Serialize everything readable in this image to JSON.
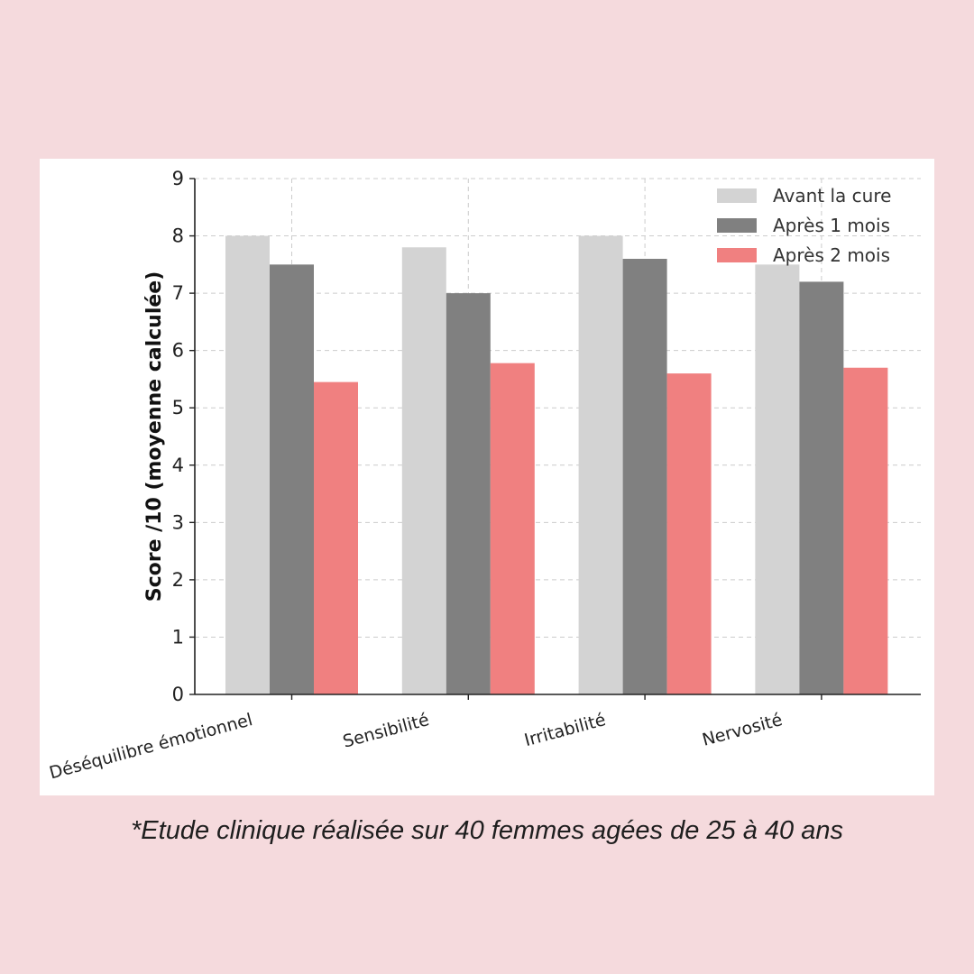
{
  "chart_data": {
    "type": "bar",
    "categories": [
      "Déséquilibre émotionnel",
      "Sensibilité",
      "Irritabilité",
      "Nervosité"
    ],
    "series": [
      {
        "name": "Avant la cure",
        "values": [
          8.0,
          7.8,
          8.0,
          7.5
        ],
        "color": "#d3d3d3"
      },
      {
        "name": "Après 1 mois",
        "values": [
          7.5,
          7.0,
          7.6,
          7.2
        ],
        "color": "#808080"
      },
      {
        "name": "Après 2 mois",
        "values": [
          5.45,
          5.78,
          5.6,
          5.7
        ],
        "color": "#f08080"
      }
    ],
    "ylabel": "Score /10 (moyenne calculée)",
    "xlabel": "",
    "ylim": [
      0,
      9
    ],
    "yticks": [
      0,
      1,
      2,
      3,
      4,
      5,
      6,
      7,
      8,
      9
    ],
    "grid": true,
    "legend_position": "top-right"
  },
  "footnote": "*Etude clinique réalisée sur 40 femmes agées de 25 à 40 ans"
}
